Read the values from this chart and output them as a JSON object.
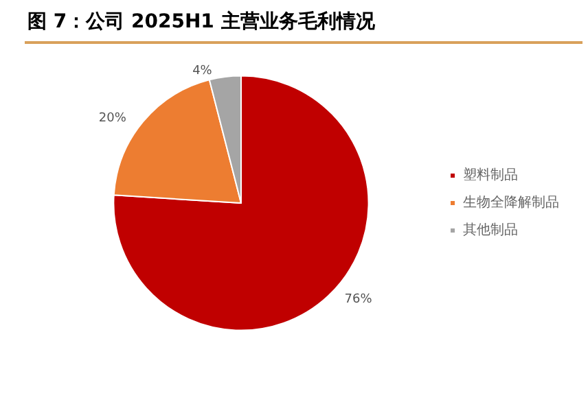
{
  "chart_data": {
    "type": "pie",
    "title": "图 7：公司 2025H1 主营业务毛利情况",
    "categories": [
      "塑料制品",
      "生物全降解制品",
      "其他制品"
    ],
    "values": [
      76,
      20,
      4
    ],
    "colors": [
      "#c00000",
      "#ed7d31",
      "#a5a5a5"
    ],
    "value_labels": [
      "76%",
      "20%",
      "4%"
    ],
    "legend": "right"
  }
}
